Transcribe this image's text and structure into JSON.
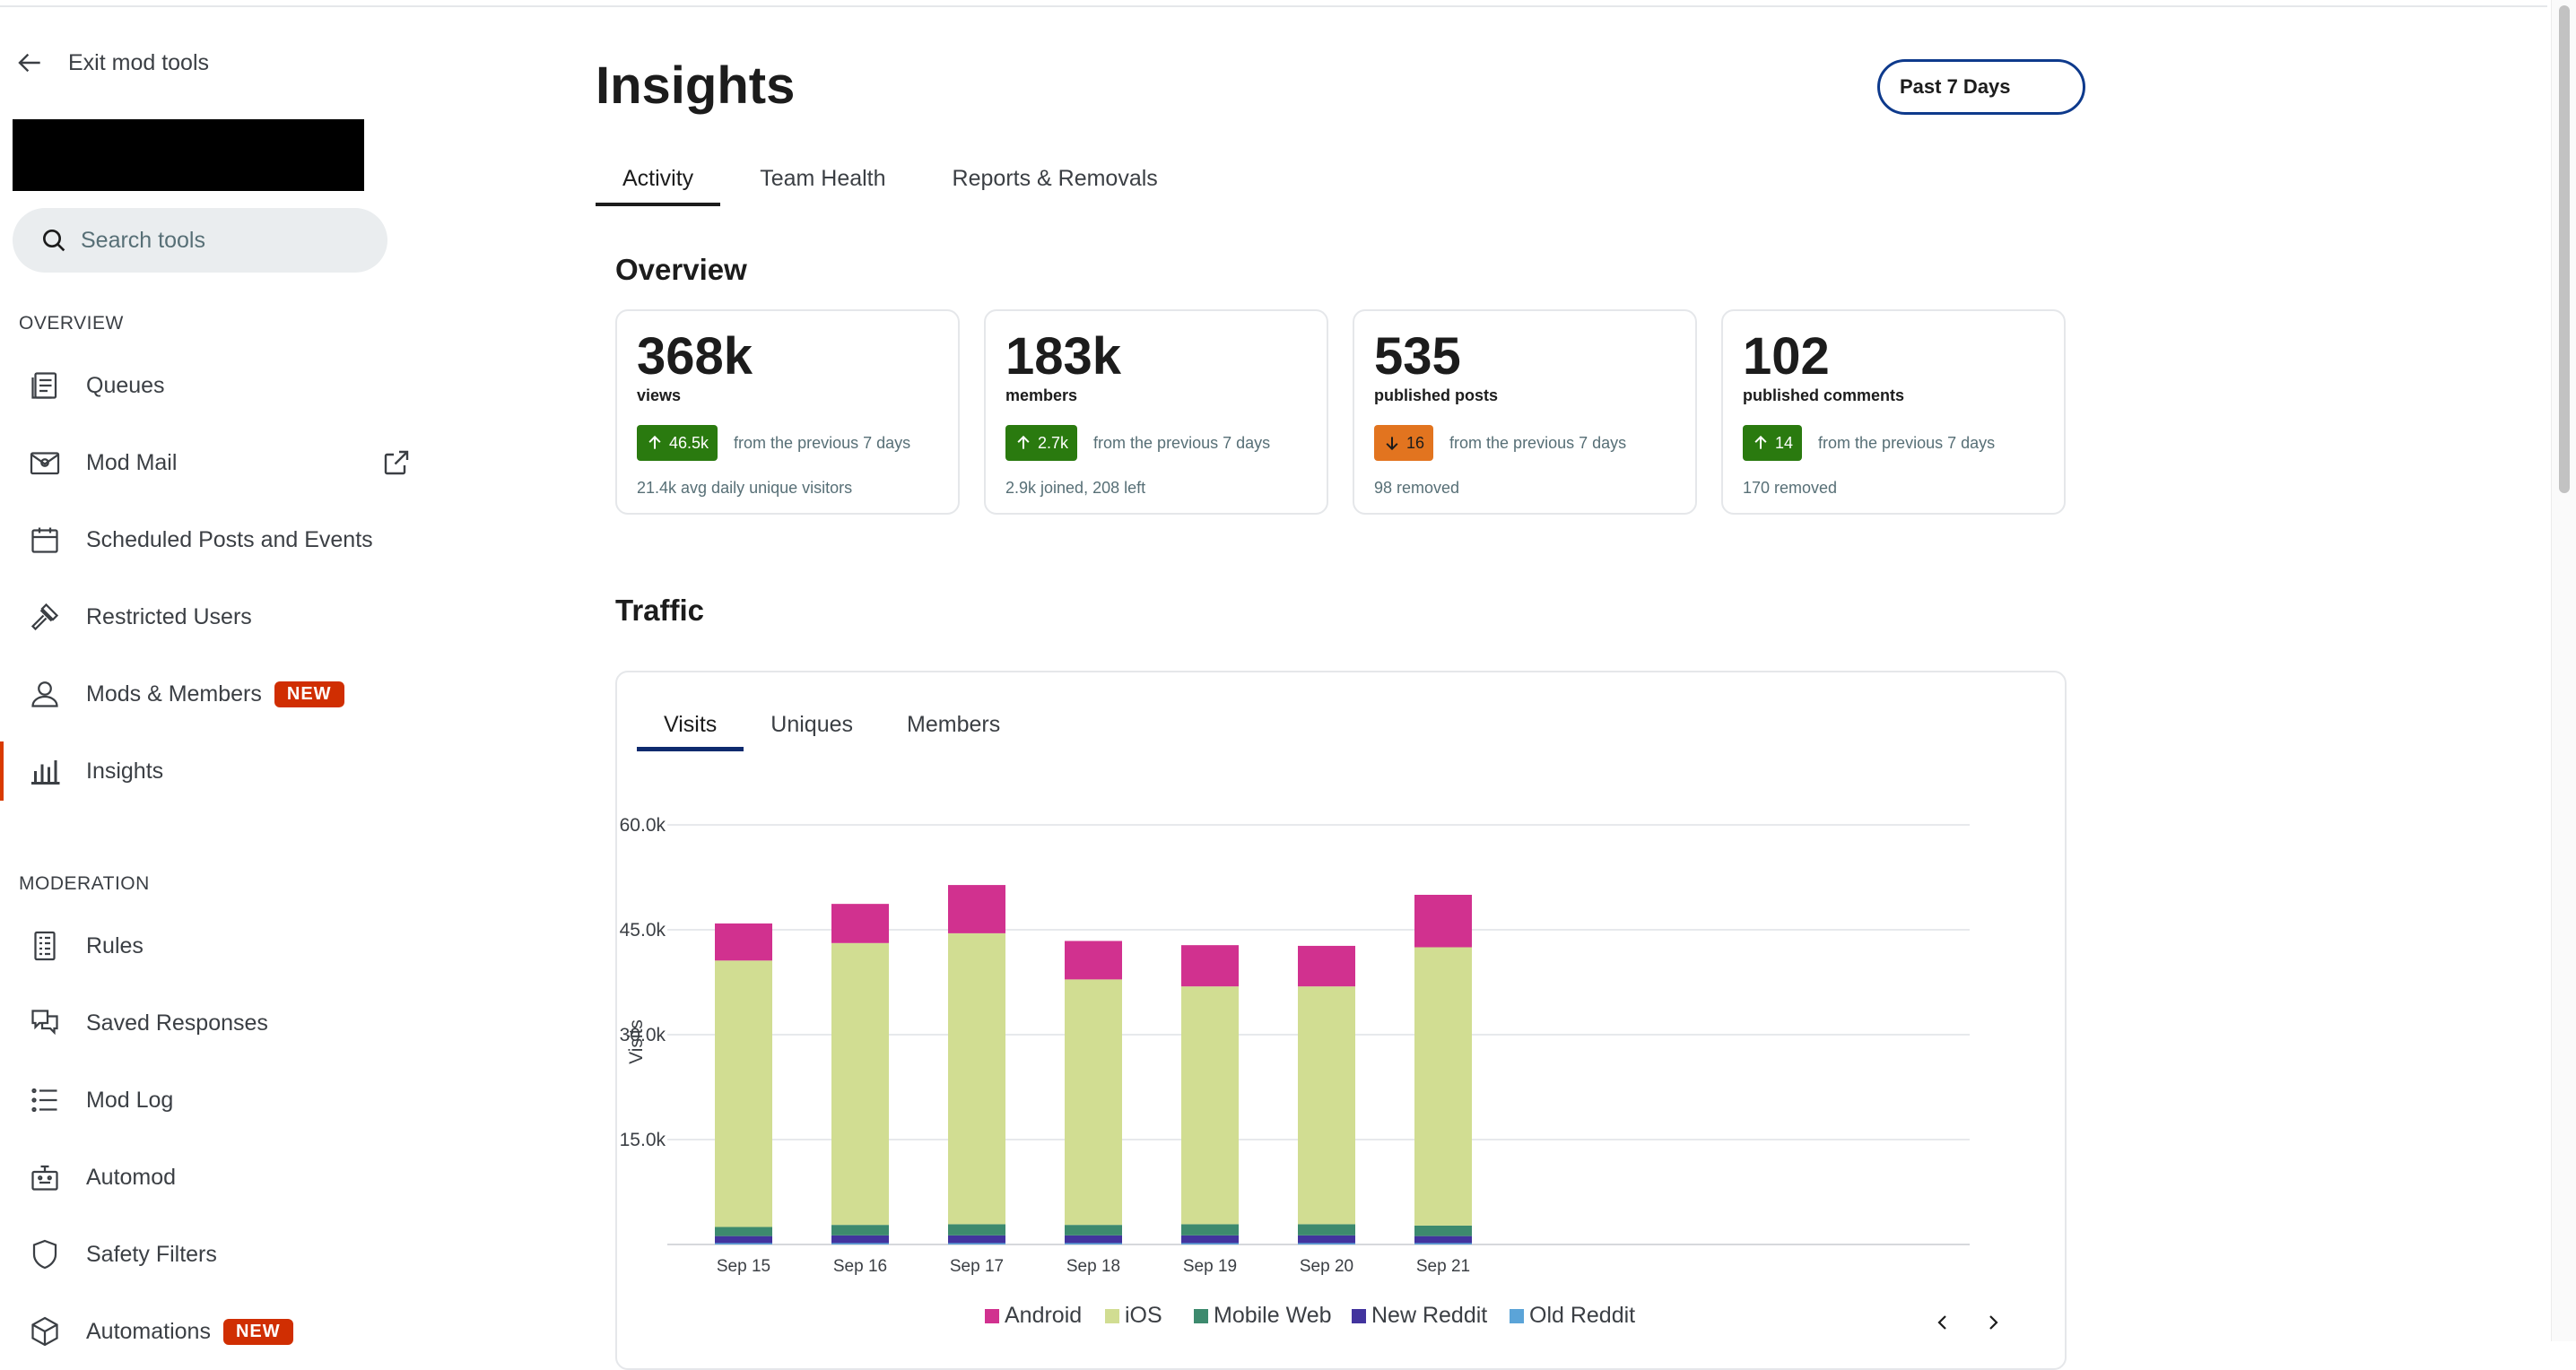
{
  "sidebar": {
    "exit_label": "Exit mod tools",
    "search_placeholder": "Search tools",
    "overview_heading": "OVERVIEW",
    "moderation_heading": "MODERATION",
    "overview_items": [
      {
        "label": "Queues",
        "icon": "queue-icon"
      },
      {
        "label": "Mod Mail",
        "icon": "mail-icon"
      },
      {
        "label": "Scheduled Posts and Events",
        "icon": "calendar-icon"
      },
      {
        "label": "Restricted Users",
        "icon": "gavel-icon"
      },
      {
        "label": "Mods & Members",
        "icon": "members-icon",
        "badge": "NEW"
      },
      {
        "label": "Insights",
        "icon": "bar-chart-icon",
        "active": true
      }
    ],
    "moderation_items": [
      {
        "label": "Rules",
        "icon": "rules-icon"
      },
      {
        "label": "Saved Responses",
        "icon": "saved-responses-icon"
      },
      {
        "label": "Mod Log",
        "icon": "list-icon"
      },
      {
        "label": "Automod",
        "icon": "robot-icon"
      },
      {
        "label": "Safety Filters",
        "icon": "shield-icon"
      },
      {
        "label": "Automations",
        "icon": "automations-icon",
        "badge": "NEW"
      }
    ]
  },
  "header": {
    "title": "Insights",
    "date_range": "Past 7 Days",
    "tabs": [
      "Activity",
      "Team Health",
      "Reports & Removals"
    ],
    "active_tab": "Activity"
  },
  "overview": {
    "heading": "Overview",
    "cards": [
      {
        "value": "368k",
        "label": "views",
        "delta": "46.5k",
        "direction": "up",
        "note": "from the previous 7 days",
        "sub": "21.4k avg daily unique visitors"
      },
      {
        "value": "183k",
        "label": "members",
        "delta": "2.7k",
        "direction": "up",
        "note": "from the previous 7 days",
        "sub": "2.9k joined, 208 left"
      },
      {
        "value": "535",
        "label": "published posts",
        "delta": "16",
        "direction": "down",
        "note": "from the previous 7 days",
        "sub": "98 removed"
      },
      {
        "value": "102",
        "label": "published comments",
        "delta": "14",
        "direction": "up",
        "note": "from the previous 7 days",
        "sub": "170 removed"
      }
    ]
  },
  "traffic": {
    "heading": "Traffic",
    "tabs": [
      "Visits",
      "Uniques",
      "Members"
    ],
    "active_tab": "Visits"
  },
  "colors": {
    "Android": "#d1318f",
    "iOS": "#d1dd92",
    "Mobile Web": "#3d8a6e",
    "New Reddit": "#42349e",
    "Old Reddit": "#5ba4d8"
  },
  "chart_data": {
    "type": "bar",
    "stacked": true,
    "categories": [
      "Sep 15",
      "Sep 16",
      "Sep 17",
      "Sep 18",
      "Sep 19",
      "Sep 20",
      "Sep 21"
    ],
    "ylabel": "Visits",
    "yticks": [
      "15.0k",
      "30.0k",
      "45.0k",
      "60.0k"
    ],
    "ylim": [
      0,
      60000
    ],
    "grid": true,
    "legend_position": "bottom",
    "series": [
      {
        "name": "Old Reddit",
        "values": [
          200,
          200,
          200,
          200,
          200,
          200,
          200
        ]
      },
      {
        "name": "New Reddit",
        "values": [
          1000,
          1100,
          1100,
          1100,
          1100,
          1100,
          1000
        ]
      },
      {
        "name": "Mobile Web",
        "values": [
          1300,
          1500,
          1600,
          1500,
          1600,
          1600,
          1500
        ]
      },
      {
        "name": "iOS",
        "values": [
          38100,
          40300,
          41600,
          35100,
          34000,
          34000,
          39800
        ]
      },
      {
        "name": "Android",
        "values": [
          5300,
          5600,
          6900,
          5500,
          5900,
          5800,
          7500
        ]
      }
    ]
  }
}
